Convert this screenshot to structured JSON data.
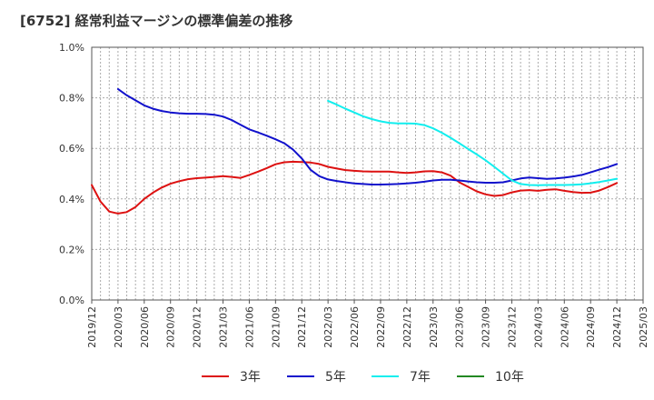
{
  "page_title": "[6752]  経常利益マージンの標準偏差の推移",
  "chart_data": {
    "type": "line",
    "title": "[6752]  経常利益マージンの標準偏差の推移",
    "xlabel": "",
    "ylabel": "",
    "ylim": [
      0,
      1.0
    ],
    "y_ticks": [
      "0.0%",
      "0.2%",
      "0.4%",
      "0.6%",
      "0.8%",
      "1.0%"
    ],
    "x_ticks": [
      "2019/12",
      "2020/03",
      "2020/06",
      "2020/09",
      "2020/12",
      "2021/03",
      "2021/06",
      "2021/09",
      "2021/12",
      "2022/03",
      "2022/06",
      "2022/09",
      "2022/12",
      "2023/03",
      "2023/06",
      "2023/09",
      "2023/12",
      "2024/03",
      "2024/06",
      "2024/09",
      "2024/12",
      "2025/03"
    ],
    "grid": true,
    "legend_position": "bottom",
    "series": [
      {
        "name": "3年",
        "color": "#dd1111",
        "points": [
          [
            "2019/12",
            0.455
          ],
          [
            "2020/01",
            0.39
          ],
          [
            "2020/02",
            0.35
          ],
          [
            "2020/03",
            0.342
          ],
          [
            "2020/04",
            0.348
          ],
          [
            "2020/05",
            0.368
          ],
          [
            "2020/06",
            0.4
          ],
          [
            "2020/07",
            0.425
          ],
          [
            "2020/08",
            0.445
          ],
          [
            "2020/09",
            0.46
          ],
          [
            "2020/10",
            0.47
          ],
          [
            "2020/11",
            0.478
          ],
          [
            "2020/12",
            0.482
          ],
          [
            "2021/01",
            0.484
          ],
          [
            "2021/02",
            0.487
          ],
          [
            "2021/03",
            0.49
          ],
          [
            "2021/04",
            0.487
          ],
          [
            "2021/05",
            0.483
          ],
          [
            "2021/06",
            0.495
          ],
          [
            "2021/07",
            0.508
          ],
          [
            "2021/08",
            0.522
          ],
          [
            "2021/09",
            0.537
          ],
          [
            "2021/10",
            0.545
          ],
          [
            "2021/11",
            0.547
          ],
          [
            "2021/12",
            0.546
          ],
          [
            "2022/01",
            0.544
          ],
          [
            "2022/02",
            0.538
          ],
          [
            "2022/03",
            0.527
          ],
          [
            "2022/04",
            0.52
          ],
          [
            "2022/05",
            0.514
          ],
          [
            "2022/06",
            0.511
          ],
          [
            "2022/07",
            0.509
          ],
          [
            "2022/08",
            0.508
          ],
          [
            "2022/09",
            0.508
          ],
          [
            "2022/10",
            0.508
          ],
          [
            "2022/11",
            0.505
          ],
          [
            "2022/12",
            0.503
          ],
          [
            "2023/01",
            0.505
          ],
          [
            "2023/02",
            0.509
          ],
          [
            "2023/03",
            0.51
          ],
          [
            "2023/04",
            0.505
          ],
          [
            "2023/05",
            0.492
          ],
          [
            "2023/06",
            0.466
          ],
          [
            "2023/07",
            0.448
          ],
          [
            "2023/08",
            0.43
          ],
          [
            "2023/09",
            0.418
          ],
          [
            "2023/10",
            0.412
          ],
          [
            "2023/11",
            0.415
          ],
          [
            "2023/12",
            0.426
          ],
          [
            "2024/01",
            0.433
          ],
          [
            "2024/02",
            0.435
          ],
          [
            "2024/03",
            0.432
          ],
          [
            "2024/04",
            0.436
          ],
          [
            "2024/05",
            0.438
          ],
          [
            "2024/06",
            0.432
          ],
          [
            "2024/07",
            0.427
          ],
          [
            "2024/08",
            0.424
          ],
          [
            "2024/09",
            0.425
          ],
          [
            "2024/10",
            0.433
          ],
          [
            "2024/11",
            0.447
          ],
          [
            "2024/12",
            0.463
          ]
        ]
      },
      {
        "name": "5年",
        "color": "#1111cc",
        "points": [
          [
            "2020/03",
            0.835
          ],
          [
            "2020/04",
            0.81
          ],
          [
            "2020/05",
            0.79
          ],
          [
            "2020/06",
            0.77
          ],
          [
            "2020/07",
            0.757
          ],
          [
            "2020/08",
            0.748
          ],
          [
            "2020/09",
            0.742
          ],
          [
            "2020/10",
            0.739
          ],
          [
            "2020/11",
            0.737
          ],
          [
            "2020/12",
            0.737
          ],
          [
            "2021/01",
            0.736
          ],
          [
            "2021/02",
            0.733
          ],
          [
            "2021/03",
            0.726
          ],
          [
            "2021/04",
            0.712
          ],
          [
            "2021/05",
            0.693
          ],
          [
            "2021/06",
            0.675
          ],
          [
            "2021/07",
            0.663
          ],
          [
            "2021/08",
            0.65
          ],
          [
            "2021/09",
            0.636
          ],
          [
            "2021/10",
            0.62
          ],
          [
            "2021/11",
            0.595
          ],
          [
            "2021/12",
            0.56
          ],
          [
            "2022/01",
            0.515
          ],
          [
            "2022/02",
            0.49
          ],
          [
            "2022/03",
            0.477
          ],
          [
            "2022/04",
            0.471
          ],
          [
            "2022/05",
            0.466
          ],
          [
            "2022/06",
            0.461
          ],
          [
            "2022/07",
            0.459
          ],
          [
            "2022/08",
            0.457
          ],
          [
            "2022/09",
            0.457
          ],
          [
            "2022/10",
            0.458
          ],
          [
            "2022/11",
            0.459
          ],
          [
            "2022/12",
            0.461
          ],
          [
            "2023/01",
            0.464
          ],
          [
            "2023/02",
            0.468
          ],
          [
            "2023/03",
            0.473
          ],
          [
            "2023/04",
            0.476
          ],
          [
            "2023/05",
            0.476
          ],
          [
            "2023/06",
            0.473
          ],
          [
            "2023/07",
            0.469
          ],
          [
            "2023/08",
            0.466
          ],
          [
            "2023/09",
            0.464
          ],
          [
            "2023/10",
            0.464
          ],
          [
            "2023/11",
            0.466
          ],
          [
            "2023/12",
            0.473
          ],
          [
            "2024/01",
            0.481
          ],
          [
            "2024/02",
            0.485
          ],
          [
            "2024/03",
            0.482
          ],
          [
            "2024/04",
            0.479
          ],
          [
            "2024/05",
            0.481
          ],
          [
            "2024/06",
            0.484
          ],
          [
            "2024/07",
            0.489
          ],
          [
            "2024/08",
            0.495
          ],
          [
            "2024/09",
            0.505
          ],
          [
            "2024/10",
            0.516
          ],
          [
            "2024/11",
            0.526
          ],
          [
            "2024/12",
            0.538
          ]
        ]
      },
      {
        "name": "7年",
        "color": "#11eeee",
        "points": [
          [
            "2022/03",
            0.788
          ],
          [
            "2022/04",
            0.773
          ],
          [
            "2022/05",
            0.757
          ],
          [
            "2022/06",
            0.742
          ],
          [
            "2022/07",
            0.727
          ],
          [
            "2022/08",
            0.716
          ],
          [
            "2022/09",
            0.707
          ],
          [
            "2022/10",
            0.701
          ],
          [
            "2022/11",
            0.699
          ],
          [
            "2022/12",
            0.699
          ],
          [
            "2023/01",
            0.698
          ],
          [
            "2023/02",
            0.692
          ],
          [
            "2023/03",
            0.679
          ],
          [
            "2023/04",
            0.662
          ],
          [
            "2023/05",
            0.642
          ],
          [
            "2023/06",
            0.62
          ],
          [
            "2023/07",
            0.598
          ],
          [
            "2023/08",
            0.576
          ],
          [
            "2023/09",
            0.553
          ],
          [
            "2023/10",
            0.527
          ],
          [
            "2023/11",
            0.5
          ],
          [
            "2023/12",
            0.473
          ],
          [
            "2024/01",
            0.459
          ],
          [
            "2024/02",
            0.455
          ],
          [
            "2024/03",
            0.454
          ],
          [
            "2024/04",
            0.455
          ],
          [
            "2024/05",
            0.455
          ],
          [
            "2024/06",
            0.455
          ],
          [
            "2024/07",
            0.456
          ],
          [
            "2024/08",
            0.458
          ],
          [
            "2024/09",
            0.462
          ],
          [
            "2024/10",
            0.467
          ],
          [
            "2024/11",
            0.473
          ],
          [
            "2024/12",
            0.48
          ]
        ]
      },
      {
        "name": "10年",
        "color": "#228822",
        "points": []
      }
    ]
  }
}
